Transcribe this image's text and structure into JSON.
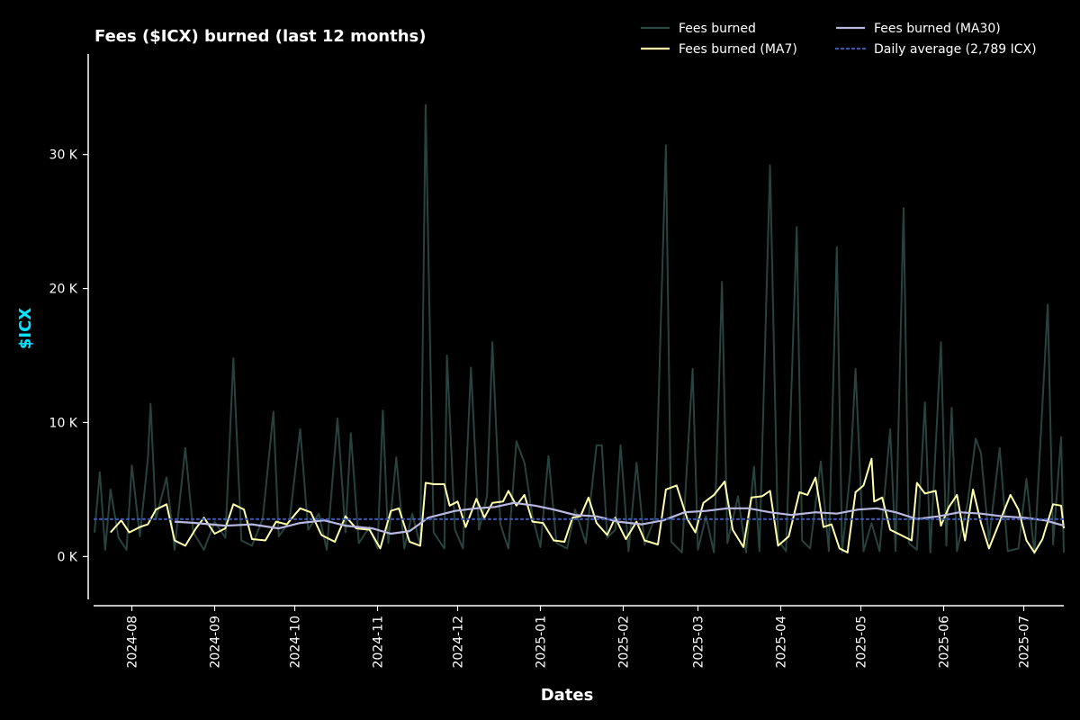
{
  "chart_data": {
    "type": "line",
    "title": "Fees ($ICX) burned (last 12 months)",
    "xlabel": "Dates",
    "ylabel": "$ICX",
    "ylabel_color": "#00e5ff",
    "ylim": [
      -3200,
      37500
    ],
    "xlim": [
      "2024-07-18",
      "2025-07-16"
    ],
    "grid": false,
    "legend_position": "top-right",
    "y_ticks": [
      {
        "value": 0,
        "label": "0 K"
      },
      {
        "value": 10000,
        "label": "10 K"
      },
      {
        "value": 20000,
        "label": "20 K"
      },
      {
        "value": 30000,
        "label": "30 K"
      }
    ],
    "x_ticks": [
      "2024-08",
      "2024-09",
      "2024-10",
      "2024-11",
      "2024-12",
      "2025-01",
      "2025-02",
      "2025-03",
      "2025-04",
      "2025-05",
      "2025-06",
      "2025-07"
    ],
    "daily_average": 2789,
    "series": [
      {
        "name": "Fees burned",
        "color": "#2c4a44",
        "style": "solid",
        "points": [
          [
            "2024-07-18",
            1800
          ],
          [
            "2024-07-20",
            6300
          ],
          [
            "2024-07-22",
            500
          ],
          [
            "2024-07-24",
            5000
          ],
          [
            "2024-07-27",
            1400
          ],
          [
            "2024-07-30",
            500
          ],
          [
            "2024-08-01",
            6800
          ],
          [
            "2024-08-04",
            1500
          ],
          [
            "2024-08-07",
            7300
          ],
          [
            "2024-08-08",
            11400
          ],
          [
            "2024-08-10",
            2800
          ],
          [
            "2024-08-14",
            5900
          ],
          [
            "2024-08-17",
            500
          ],
          [
            "2024-08-21",
            8100
          ],
          [
            "2024-08-24",
            1800
          ],
          [
            "2024-08-28",
            500
          ],
          [
            "2024-09-01",
            2600
          ],
          [
            "2024-09-05",
            1400
          ],
          [
            "2024-09-08",
            14800
          ],
          [
            "2024-09-11",
            1200
          ],
          [
            "2024-09-15",
            800
          ],
          [
            "2024-09-19",
            2800
          ],
          [
            "2024-09-23",
            10800
          ],
          [
            "2024-09-25",
            1500
          ],
          [
            "2024-09-29",
            2600
          ],
          [
            "2024-10-03",
            9500
          ],
          [
            "2024-10-06",
            2000
          ],
          [
            "2024-10-10",
            3200
          ],
          [
            "2024-10-13",
            500
          ],
          [
            "2024-10-17",
            10300
          ],
          [
            "2024-10-20",
            1800
          ],
          [
            "2024-10-22",
            9200
          ],
          [
            "2024-10-25",
            1000
          ],
          [
            "2024-10-29",
            2200
          ],
          [
            "2024-11-01",
            600
          ],
          [
            "2024-11-03",
            10900
          ],
          [
            "2024-11-05",
            1000
          ],
          [
            "2024-11-08",
            7400
          ],
          [
            "2024-11-11",
            600
          ],
          [
            "2024-11-14",
            3200
          ],
          [
            "2024-11-17",
            800
          ],
          [
            "2024-11-19",
            33700
          ],
          [
            "2024-11-22",
            1800
          ],
          [
            "2024-11-26",
            600
          ],
          [
            "2024-11-27",
            15000
          ],
          [
            "2024-11-30",
            2000
          ],
          [
            "2024-12-03",
            600
          ],
          [
            "2024-12-06",
            14100
          ],
          [
            "2024-12-09",
            2000
          ],
          [
            "2024-12-12",
            4500
          ],
          [
            "2024-12-14",
            16000
          ],
          [
            "2024-12-17",
            2400
          ],
          [
            "2024-12-20",
            600
          ],
          [
            "2024-12-23",
            8600
          ],
          [
            "2024-12-26",
            7000
          ],
          [
            "2024-12-29",
            3000
          ],
          [
            "2025-01-01",
            700
          ],
          [
            "2025-01-04",
            7500
          ],
          [
            "2025-01-07",
            1000
          ],
          [
            "2025-01-11",
            600
          ],
          [
            "2025-01-14",
            3500
          ],
          [
            "2025-01-18",
            1000
          ],
          [
            "2025-01-22",
            8300
          ],
          [
            "2025-01-24",
            8300
          ],
          [
            "2025-01-26",
            1400
          ],
          [
            "2025-01-29",
            2000
          ],
          [
            "2025-01-31",
            8300
          ],
          [
            "2025-02-03",
            400
          ],
          [
            "2025-02-06",
            7000
          ],
          [
            "2025-02-09",
            900
          ],
          [
            "2025-02-13",
            3000
          ],
          [
            "2025-02-17",
            30700
          ],
          [
            "2025-02-19",
            1100
          ],
          [
            "2025-02-23",
            300
          ],
          [
            "2025-02-27",
            14000
          ],
          [
            "2025-03-01",
            500
          ],
          [
            "2025-03-04",
            3000
          ],
          [
            "2025-03-07",
            300
          ],
          [
            "2025-03-10",
            20500
          ],
          [
            "2025-03-12",
            1000
          ],
          [
            "2025-03-16",
            4500
          ],
          [
            "2025-03-19",
            300
          ],
          [
            "2025-03-22",
            6700
          ],
          [
            "2025-03-24",
            400
          ],
          [
            "2025-03-28",
            29200
          ],
          [
            "2025-03-31",
            1200
          ],
          [
            "2025-04-03",
            400
          ],
          [
            "2025-04-07",
            24600
          ],
          [
            "2025-04-09",
            1200
          ],
          [
            "2025-04-12",
            600
          ],
          [
            "2025-04-16",
            7100
          ],
          [
            "2025-04-19",
            400
          ],
          [
            "2025-04-22",
            23100
          ],
          [
            "2025-04-24",
            300
          ],
          [
            "2025-04-27",
            6200
          ],
          [
            "2025-04-29",
            14000
          ],
          [
            "2025-05-02",
            400
          ],
          [
            "2025-05-05",
            2500
          ],
          [
            "2025-05-08",
            400
          ],
          [
            "2025-05-12",
            9500
          ],
          [
            "2025-05-14",
            400
          ],
          [
            "2025-05-17",
            26000
          ],
          [
            "2025-05-19",
            1000
          ],
          [
            "2025-05-22",
            500
          ],
          [
            "2025-05-25",
            11500
          ],
          [
            "2025-05-27",
            300
          ],
          [
            "2025-05-31",
            16000
          ],
          [
            "2025-06-02",
            800
          ],
          [
            "2025-06-04",
            11100
          ],
          [
            "2025-06-06",
            400
          ],
          [
            "2025-06-10",
            4000
          ],
          [
            "2025-06-13",
            8800
          ],
          [
            "2025-06-15",
            7700
          ],
          [
            "2025-06-18",
            1200
          ],
          [
            "2025-06-22",
            8100
          ],
          [
            "2025-06-25",
            400
          ],
          [
            "2025-06-29",
            600
          ],
          [
            "2025-07-02",
            5800
          ],
          [
            "2025-07-05",
            200
          ],
          [
            "2025-07-10",
            18800
          ],
          [
            "2025-07-12",
            900
          ],
          [
            "2025-07-15",
            8900
          ],
          [
            "2025-07-16",
            300
          ]
        ]
      },
      {
        "name": "Fees burned (MA7)",
        "color": "#ffffaa",
        "style": "solid",
        "points": [
          [
            "2024-07-24",
            1800
          ],
          [
            "2024-07-28",
            2700
          ],
          [
            "2024-07-31",
            1800
          ],
          [
            "2024-08-04",
            2200
          ],
          [
            "2024-08-07",
            2400
          ],
          [
            "2024-08-10",
            3500
          ],
          [
            "2024-08-14",
            3900
          ],
          [
            "2024-08-17",
            1200
          ],
          [
            "2024-08-21",
            800
          ],
          [
            "2024-08-25",
            2100
          ],
          [
            "2024-08-28",
            2900
          ],
          [
            "2024-09-01",
            1700
          ],
          [
            "2024-09-05",
            2100
          ],
          [
            "2024-09-08",
            3900
          ],
          [
            "2024-09-12",
            3500
          ],
          [
            "2024-09-15",
            1300
          ],
          [
            "2024-09-20",
            1200
          ],
          [
            "2024-09-24",
            2600
          ],
          [
            "2024-09-28",
            2400
          ],
          [
            "2024-10-03",
            3600
          ],
          [
            "2024-10-07",
            3300
          ],
          [
            "2024-10-11",
            1600
          ],
          [
            "2024-10-16",
            1100
          ],
          [
            "2024-10-20",
            3000
          ],
          [
            "2024-10-24",
            2100
          ],
          [
            "2024-10-29",
            2000
          ],
          [
            "2024-11-02",
            600
          ],
          [
            "2024-11-06",
            3400
          ],
          [
            "2024-11-09",
            3600
          ],
          [
            "2024-11-13",
            1100
          ],
          [
            "2024-11-17",
            800
          ],
          [
            "2024-11-19",
            5500
          ],
          [
            "2024-11-22",
            5400
          ],
          [
            "2024-11-26",
            5400
          ],
          [
            "2024-11-28",
            3800
          ],
          [
            "2024-12-01",
            4100
          ],
          [
            "2024-12-04",
            2200
          ],
          [
            "2024-12-08",
            4300
          ],
          [
            "2024-12-11",
            2900
          ],
          [
            "2024-12-14",
            4000
          ],
          [
            "2024-12-18",
            4100
          ],
          [
            "2024-12-20",
            4900
          ],
          [
            "2024-12-23",
            3800
          ],
          [
            "2024-12-26",
            4600
          ],
          [
            "2024-12-29",
            2600
          ],
          [
            "2025-01-02",
            2500
          ],
          [
            "2025-01-06",
            1200
          ],
          [
            "2025-01-10",
            1100
          ],
          [
            "2025-01-13",
            2900
          ],
          [
            "2025-01-16",
            3000
          ],
          [
            "2025-01-19",
            4400
          ],
          [
            "2025-01-22",
            2500
          ],
          [
            "2025-01-26",
            1600
          ],
          [
            "2025-01-29",
            2900
          ],
          [
            "2025-02-02",
            1300
          ],
          [
            "2025-02-06",
            2600
          ],
          [
            "2025-02-09",
            1200
          ],
          [
            "2025-02-14",
            900
          ],
          [
            "2025-02-17",
            5000
          ],
          [
            "2025-02-21",
            5300
          ],
          [
            "2025-02-25",
            2800
          ],
          [
            "2025-02-28",
            1800
          ],
          [
            "2025-03-03",
            4000
          ],
          [
            "2025-03-07",
            4600
          ],
          [
            "2025-03-11",
            5600
          ],
          [
            "2025-03-14",
            2000
          ],
          [
            "2025-03-18",
            700
          ],
          [
            "2025-03-21",
            4400
          ],
          [
            "2025-03-25",
            4500
          ],
          [
            "2025-03-28",
            4900
          ],
          [
            "2025-03-31",
            800
          ],
          [
            "2025-04-04",
            1500
          ],
          [
            "2025-04-08",
            4800
          ],
          [
            "2025-04-11",
            4600
          ],
          [
            "2025-04-14",
            5900
          ],
          [
            "2025-04-17",
            2200
          ],
          [
            "2025-04-20",
            2400
          ],
          [
            "2025-04-23",
            600
          ],
          [
            "2025-04-26",
            300
          ],
          [
            "2025-04-29",
            4800
          ],
          [
            "2025-05-02",
            5300
          ],
          [
            "2025-05-05",
            7300
          ],
          [
            "2025-05-06",
            4100
          ],
          [
            "2025-05-09",
            4400
          ],
          [
            "2025-05-12",
            2000
          ],
          [
            "2025-05-16",
            1600
          ],
          [
            "2025-05-20",
            1200
          ],
          [
            "2025-05-22",
            5500
          ],
          [
            "2025-05-25",
            4700
          ],
          [
            "2025-05-29",
            4900
          ],
          [
            "2025-05-31",
            2300
          ],
          [
            "2025-06-03",
            3700
          ],
          [
            "2025-06-06",
            4600
          ],
          [
            "2025-06-09",
            1200
          ],
          [
            "2025-06-12",
            5000
          ],
          [
            "2025-06-15",
            2500
          ],
          [
            "2025-06-18",
            600
          ],
          [
            "2025-06-22",
            2600
          ],
          [
            "2025-06-26",
            4600
          ],
          [
            "2025-06-29",
            3500
          ],
          [
            "2025-07-02",
            1200
          ],
          [
            "2025-07-05",
            300
          ],
          [
            "2025-07-08",
            1300
          ],
          [
            "2025-07-12",
            3900
          ],
          [
            "2025-07-15",
            3800
          ],
          [
            "2025-07-16",
            2100
          ]
        ]
      },
      {
        "name": "Fees burned (MA30)",
        "color": "#b8b8e0",
        "style": "solid",
        "points": [
          [
            "2024-08-17",
            2600
          ],
          [
            "2024-08-25",
            2500
          ],
          [
            "2024-09-05",
            2300
          ],
          [
            "2024-09-15",
            2400
          ],
          [
            "2024-09-25",
            2100
          ],
          [
            "2024-10-03",
            2500
          ],
          [
            "2024-10-12",
            2700
          ],
          [
            "2024-10-20",
            2300
          ],
          [
            "2024-10-30",
            2100
          ],
          [
            "2024-11-06",
            1700
          ],
          [
            "2024-11-13",
            1900
          ],
          [
            "2024-11-20",
            2900
          ],
          [
            "2024-11-30",
            3400
          ],
          [
            "2024-12-08",
            3600
          ],
          [
            "2024-12-15",
            3700
          ],
          [
            "2024-12-22",
            4000
          ],
          [
            "2024-12-30",
            3800
          ],
          [
            "2025-01-06",
            3500
          ],
          [
            "2025-01-14",
            3100
          ],
          [
            "2025-01-22",
            3000
          ],
          [
            "2025-01-30",
            2600
          ],
          [
            "2025-02-08",
            2400
          ],
          [
            "2025-02-16",
            2700
          ],
          [
            "2025-02-24",
            3300
          ],
          [
            "2025-03-04",
            3400
          ],
          [
            "2025-03-12",
            3600
          ],
          [
            "2025-03-20",
            3600
          ],
          [
            "2025-03-28",
            3300
          ],
          [
            "2025-04-05",
            3100
          ],
          [
            "2025-04-14",
            3300
          ],
          [
            "2025-04-22",
            3200
          ],
          [
            "2025-04-30",
            3500
          ],
          [
            "2025-05-07",
            3600
          ],
          [
            "2025-05-14",
            3300
          ],
          [
            "2025-05-22",
            2800
          ],
          [
            "2025-05-30",
            3000
          ],
          [
            "2025-06-07",
            3300
          ],
          [
            "2025-06-15",
            3200
          ],
          [
            "2025-06-23",
            3000
          ],
          [
            "2025-07-01",
            2900
          ],
          [
            "2025-07-09",
            2700
          ],
          [
            "2025-07-16",
            2300
          ]
        ]
      },
      {
        "name": "Daily average (2,789 ICX)",
        "color": "#3b5ab8",
        "style": "dotted",
        "points": [
          [
            "2024-07-18",
            2789
          ],
          [
            "2025-07-16",
            2789
          ]
        ]
      }
    ]
  }
}
